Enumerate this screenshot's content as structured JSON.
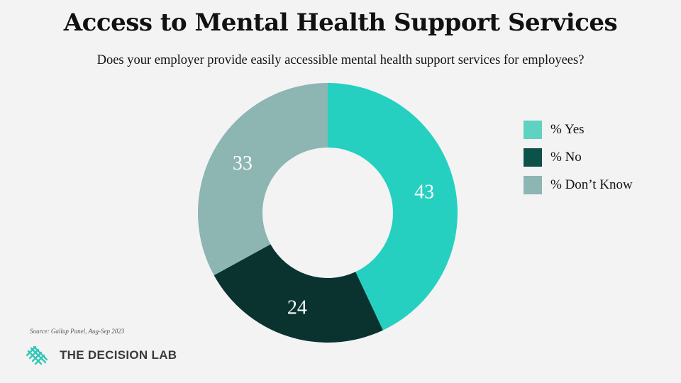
{
  "title": "Access to Mental Health Support Services",
  "subtitle": "Does your employer provide easily accessible mental health support services for employees?",
  "source": "Source: Gallup Panel, Aug-Sep 2023",
  "brand": "THE DECISION LAB",
  "logo_icon": "decision-lab-logo",
  "chart_data": {
    "type": "pie",
    "donut": true,
    "categories": [
      "% Yes",
      "% No",
      "% Don’t Know"
    ],
    "values": [
      43,
      24,
      33
    ],
    "colors": [
      "#26d0c0",
      "#0a3330",
      "#8db5b2"
    ],
    "legend_colors": [
      "#5fd2c2",
      "#0d5248",
      "#8db5b2"
    ],
    "legend_position": "right"
  }
}
